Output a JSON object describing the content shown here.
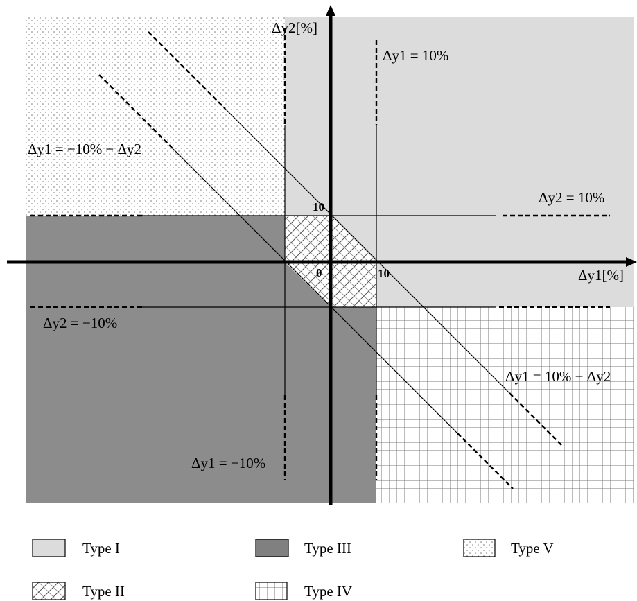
{
  "axes": {
    "x_label": "Δy1[%]",
    "y_label": "Δy2[%]",
    "origin_label": "0",
    "x_tick": "10",
    "y_tick": "10"
  },
  "annotations": {
    "dy1_pos": "Δy1 = 10%",
    "dy2_pos": "Δy2 = 10%",
    "dy2_neg": "Δy2 = −10%",
    "dy1_neg": "Δy1 = −10%",
    "diag_neg": "Δy1 = −10% − Δy2",
    "diag_pos": "Δy1 = 10% − Δy2"
  },
  "legend": {
    "type1": "Type I",
    "type2": "Type II",
    "type3": "Type III",
    "type4": "Type IV",
    "type5": "Type V"
  },
  "colors": {
    "type1_fill": "#dcdcdc",
    "type3_fill": "#8c8c8c",
    "axis": "#000000"
  }
}
